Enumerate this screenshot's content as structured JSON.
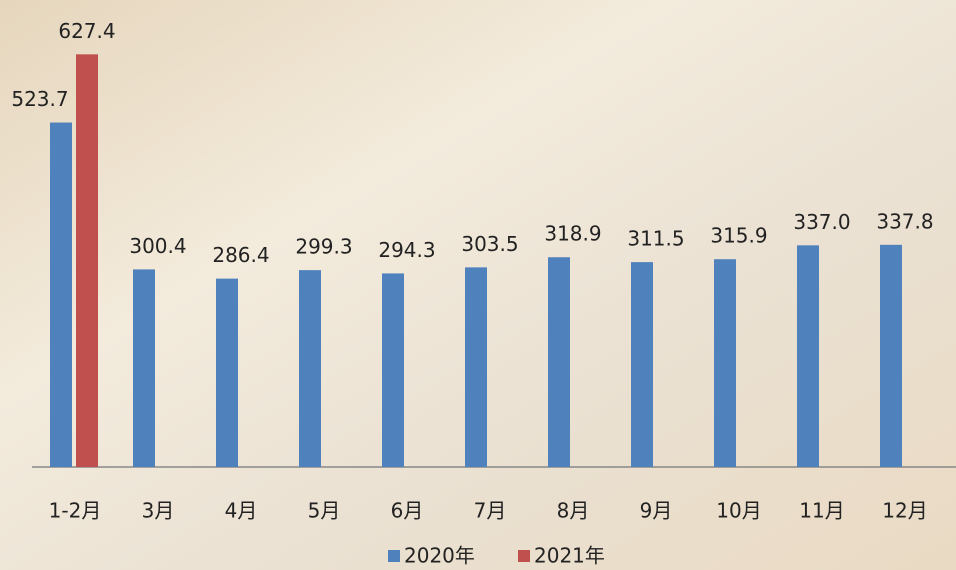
{
  "chart_data": {
    "type": "bar",
    "categories": [
      "1-2月",
      "3月",
      "4月",
      "5月",
      "6月",
      "7月",
      "8月",
      "9月",
      "10月",
      "11月",
      "12月"
    ],
    "series": [
      {
        "name": "2020年",
        "color": "#4f81bd",
        "values": [
          523.7,
          300.4,
          286.4,
          299.3,
          294.3,
          303.5,
          318.9,
          311.5,
          315.9,
          337.0,
          337.8
        ],
        "value_labels": [
          "523.7",
          "300.4",
          "286.4",
          "299.3",
          "294.3",
          "303.5",
          "318.9",
          "311.5",
          "315.9",
          "337.0",
          "337.8"
        ]
      },
      {
        "name": "2021年",
        "color": "#c0504d",
        "values": [
          627.4,
          null,
          null,
          null,
          null,
          null,
          null,
          null,
          null,
          null,
          null
        ],
        "value_labels": [
          "627.4",
          null,
          null,
          null,
          null,
          null,
          null,
          null,
          null,
          null,
          null
        ]
      }
    ],
    "ylim": [
      0,
      710
    ],
    "legend": "bottom"
  }
}
